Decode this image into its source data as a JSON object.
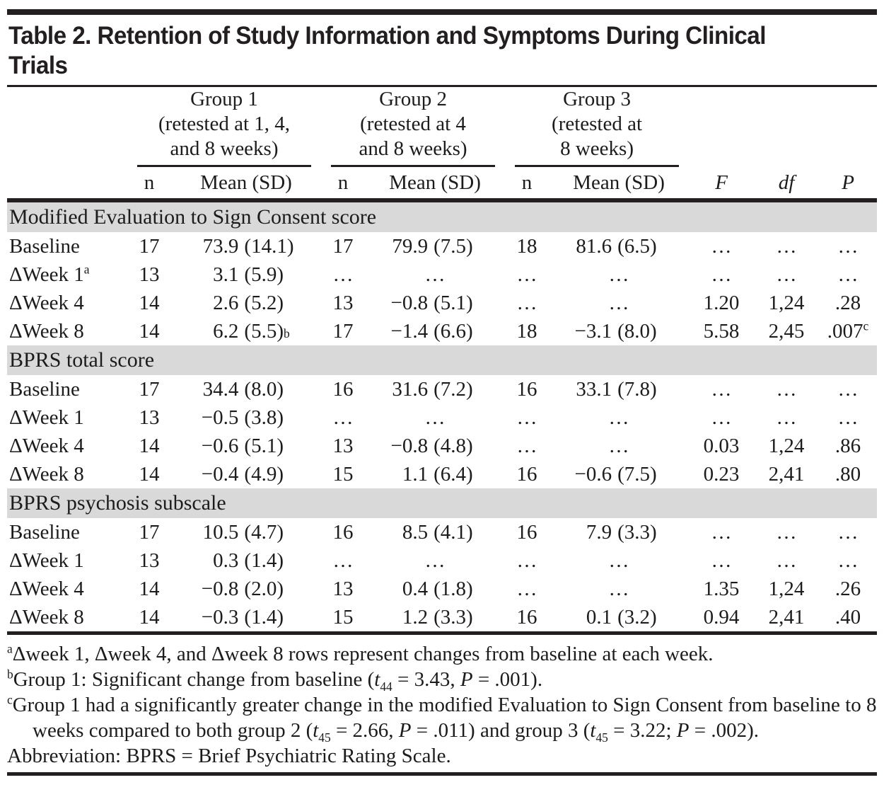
{
  "title_lines": [
    "Table 2. Retention of Study Information and Symptoms During Clinical",
    "Trials"
  ],
  "colors": {
    "section_band": "#d9d9d9",
    "rule": "#231f20",
    "text": "#1c1c1c"
  },
  "table": {
    "groups": [
      {
        "lines": [
          "Group 1",
          "(retested at 1, 4,",
          "and 8 weeks)"
        ]
      },
      {
        "lines": [
          "Group 2",
          "(retested at 4",
          "and 8 weeks)"
        ]
      },
      {
        "lines": [
          "Group 3",
          "(retested at",
          "8 weeks)"
        ]
      }
    ],
    "subheaders": {
      "n": "n",
      "mean": "Mean (SD)",
      "f": "F",
      "df": "df",
      "p": "P"
    },
    "sections": [
      {
        "title": "Modified Evaluation to Sign Consent score",
        "rows": [
          {
            "label": "Baseline",
            "cells": [
              "17",
              {
                "m": "73.9",
                "sd": "(14.1)"
              },
              "17",
              {
                "m": "79.9",
                "sd": "(7.5)"
              },
              "18",
              {
                "m": "81.6",
                "sd": "(6.5)"
              },
              "…",
              "…",
              "…"
            ]
          },
          {
            "label": "ΔWeek 1",
            "label_sup": "a",
            "cells": [
              "13",
              {
                "m": "3.1",
                "sd": "(5.9)"
              },
              "…",
              "…",
              "…",
              "…",
              "…",
              "…",
              "…"
            ]
          },
          {
            "label": "ΔWeek 4",
            "cells": [
              "14",
              {
                "m": "2.6",
                "sd": "(5.2)"
              },
              "13",
              {
                "m": "−0.8",
                "sd": "(5.1)"
              },
              "…",
              "…",
              "1.20",
              "1,24",
              ".28"
            ]
          },
          {
            "label": "ΔWeek 8",
            "cells": [
              "14",
              {
                "m": "6.2",
                "sd": "(5.5)",
                "sup": "b"
              },
              "17",
              {
                "m": "−1.4",
                "sd": "(6.6)"
              },
              "18",
              {
                "m": "−3.1",
                "sd": "(8.0)"
              },
              "5.58",
              "2,45",
              {
                "v": ".007",
                "sup": "c"
              }
            ]
          }
        ]
      },
      {
        "title": "BPRS total score",
        "rows": [
          {
            "label": "Baseline",
            "cells": [
              "17",
              {
                "m": "34.4",
                "sd": "(8.0)"
              },
              "16",
              {
                "m": "31.6",
                "sd": "(7.2)"
              },
              "16",
              {
                "m": "33.1",
                "sd": "(7.8)"
              },
              "…",
              "…",
              "…"
            ]
          },
          {
            "label": "ΔWeek 1",
            "cells": [
              "13",
              {
                "m": "−0.5",
                "sd": "(3.8)"
              },
              "…",
              "…",
              "…",
              "…",
              "…",
              "…",
              "…"
            ]
          },
          {
            "label": "ΔWeek 4",
            "cells": [
              "14",
              {
                "m": "−0.6",
                "sd": "(5.1)"
              },
              "13",
              {
                "m": "−0.8",
                "sd": "(4.8)"
              },
              "…",
              "…",
              "0.03",
              "1,24",
              ".86"
            ]
          },
          {
            "label": "ΔWeek 8",
            "cells": [
              "14",
              {
                "m": "−0.4",
                "sd": "(4.9)"
              },
              "15",
              {
                "m": "1.1",
                "sd": "(6.4)"
              },
              "16",
              {
                "m": "−0.6",
                "sd": "(7.5)"
              },
              "0.23",
              "2,41",
              ".80"
            ]
          }
        ]
      },
      {
        "title": "BPRS psychosis subscale",
        "rows": [
          {
            "label": "Baseline",
            "cells": [
              "17",
              {
                "m": "10.5",
                "sd": "(4.7)"
              },
              "16",
              {
                "m": "8.5",
                "sd": "(4.1)"
              },
              "16",
              {
                "m": "7.9",
                "sd": "(3.3)"
              },
              "…",
              "…",
              "…"
            ]
          },
          {
            "label": "ΔWeek 1",
            "cells": [
              "13",
              {
                "m": "0.3",
                "sd": "(1.4)"
              },
              "…",
              "…",
              "…",
              "…",
              "…",
              "…",
              "…"
            ]
          },
          {
            "label": "ΔWeek 4",
            "cells": [
              "14",
              {
                "m": "−0.8",
                "sd": "(2.0)"
              },
              "13",
              {
                "m": "0.4",
                "sd": "(1.8)"
              },
              "…",
              "…",
              "1.35",
              "1,24",
              ".26"
            ]
          },
          {
            "label": "ΔWeek 8",
            "cells": [
              "14",
              {
                "m": "−0.3",
                "sd": "(1.4)"
              },
              "15",
              {
                "m": "1.2",
                "sd": "(3.3)"
              },
              "16",
              {
                "m": "0.1",
                "sd": "(3.2)"
              },
              "0.94",
              "2,41",
              ".40"
            ]
          }
        ]
      }
    ]
  },
  "footnotes": [
    {
      "segs": [
        {
          "sup": "a"
        },
        {
          "t": "Δweek 1, Δweek 4, and Δweek 8 rows represent changes from baseline at each week."
        }
      ]
    },
    {
      "segs": [
        {
          "sup": "b"
        },
        {
          "t": "Group 1: Significant change from baseline ("
        },
        {
          "i": "t"
        },
        {
          "sub": "44"
        },
        {
          "t": " = 3.43, "
        },
        {
          "i": "P"
        },
        {
          "t": " = .001)."
        }
      ]
    },
    {
      "segs": [
        {
          "sup": "c"
        },
        {
          "t": "Group 1 had a significantly greater change in the modified Evaluation to Sign Consent from baseline to 8 weeks compared to both group 2 ("
        },
        {
          "i": "t"
        },
        {
          "sub": "45"
        },
        {
          "t": " = 2.66, "
        },
        {
          "i": "P"
        },
        {
          "t": " = .011) and group 3 ("
        },
        {
          "i": "t"
        },
        {
          "sub": "45"
        },
        {
          "t": " = 3.22; "
        },
        {
          "i": "P"
        },
        {
          "t": " = .002)."
        }
      ]
    },
    {
      "segs": [
        {
          "t": "Abbreviation: BPRS = Brief Psychiatric Rating Scale."
        }
      ]
    }
  ]
}
